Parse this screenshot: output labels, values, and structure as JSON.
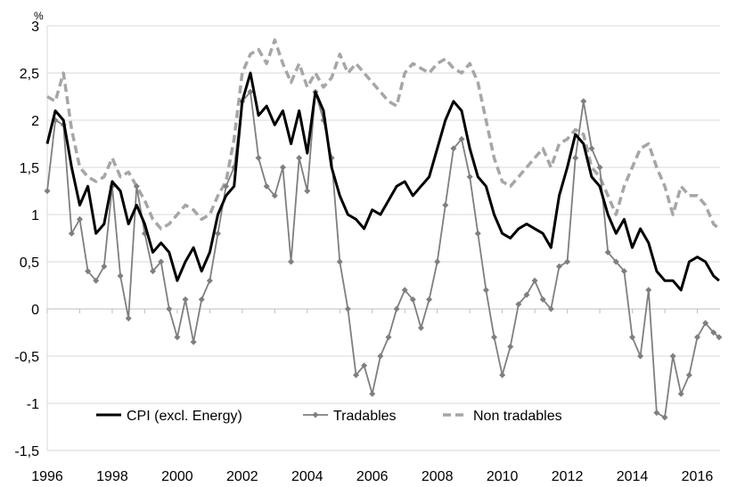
{
  "chart_data": {
    "type": "line",
    "title": "",
    "xlabel": "",
    "ylabel": "%",
    "xlim": [
      1996,
      2016.7
    ],
    "ylim": [
      -1.5,
      3
    ],
    "grid": "horizontal",
    "legend_position": "bottom-left inside plot",
    "x_ticks": [
      1996,
      1998,
      2000,
      2002,
      2004,
      2006,
      2008,
      2010,
      2012,
      2014,
      2016
    ],
    "x_tick_labels": [
      "1996",
      "1998",
      "2000",
      "2002",
      "2004",
      "2006",
      "2008",
      "2010",
      "2012",
      "2014",
      "2016"
    ],
    "y_ticks": [
      -1.5,
      -1,
      -0.5,
      0,
      0.5,
      1,
      1.5,
      2,
      2.5,
      3
    ],
    "y_tick_labels": [
      "-1,5",
      "-1",
      "-0,5",
      "0",
      "0,5",
      "1",
      "1,5",
      "2",
      "2,5",
      "3"
    ],
    "series": [
      {
        "name": "CPI (excl. Energy)",
        "color": "#000000",
        "style": "solid",
        "points": [
          [
            1996.0,
            1.75
          ],
          [
            1996.25,
            2.1
          ],
          [
            1996.5,
            2.0
          ],
          [
            1996.75,
            1.5
          ],
          [
            1997.0,
            1.1
          ],
          [
            1997.25,
            1.3
          ],
          [
            1997.5,
            0.8
          ],
          [
            1997.75,
            0.9
          ],
          [
            1998.0,
            1.35
          ],
          [
            1998.25,
            1.25
          ],
          [
            1998.5,
            0.9
          ],
          [
            1998.75,
            1.1
          ],
          [
            1999.0,
            0.9
          ],
          [
            1999.25,
            0.6
          ],
          [
            1999.5,
            0.7
          ],
          [
            1999.75,
            0.6
          ],
          [
            2000.0,
            0.3
          ],
          [
            2000.25,
            0.5
          ],
          [
            2000.5,
            0.65
          ],
          [
            2000.75,
            0.4
          ],
          [
            2001.0,
            0.6
          ],
          [
            2001.25,
            1.0
          ],
          [
            2001.5,
            1.2
          ],
          [
            2001.75,
            1.3
          ],
          [
            2002.0,
            2.2
          ],
          [
            2002.25,
            2.5
          ],
          [
            2002.5,
            2.05
          ],
          [
            2002.75,
            2.15
          ],
          [
            2003.0,
            1.95
          ],
          [
            2003.25,
            2.1
          ],
          [
            2003.5,
            1.75
          ],
          [
            2003.75,
            2.1
          ],
          [
            2004.0,
            1.65
          ],
          [
            2004.25,
            2.3
          ],
          [
            2004.5,
            2.1
          ],
          [
            2004.75,
            1.5
          ],
          [
            2005.0,
            1.2
          ],
          [
            2005.25,
            1.0
          ],
          [
            2005.5,
            0.95
          ],
          [
            2005.75,
            0.85
          ],
          [
            2006.0,
            1.05
          ],
          [
            2006.25,
            1.0
          ],
          [
            2006.5,
            1.15
          ],
          [
            2006.75,
            1.3
          ],
          [
            2007.0,
            1.35
          ],
          [
            2007.25,
            1.2
          ],
          [
            2007.5,
            1.3
          ],
          [
            2007.75,
            1.4
          ],
          [
            2008.0,
            1.7
          ],
          [
            2008.25,
            2.0
          ],
          [
            2008.5,
            2.2
          ],
          [
            2008.75,
            2.1
          ],
          [
            2009.0,
            1.7
          ],
          [
            2009.25,
            1.4
          ],
          [
            2009.5,
            1.3
          ],
          [
            2009.75,
            1.0
          ],
          [
            2010.0,
            0.8
          ],
          [
            2010.25,
            0.75
          ],
          [
            2010.5,
            0.85
          ],
          [
            2010.75,
            0.9
          ],
          [
            2011.0,
            0.85
          ],
          [
            2011.25,
            0.8
          ],
          [
            2011.5,
            0.65
          ],
          [
            2011.75,
            1.2
          ],
          [
            2012.0,
            1.5
          ],
          [
            2012.25,
            1.85
          ],
          [
            2012.5,
            1.75
          ],
          [
            2012.75,
            1.4
          ],
          [
            2013.0,
            1.3
          ],
          [
            2013.25,
            1.0
          ],
          [
            2013.5,
            0.8
          ],
          [
            2013.75,
            0.95
          ],
          [
            2014.0,
            0.65
          ],
          [
            2014.25,
            0.85
          ],
          [
            2014.5,
            0.7
          ],
          [
            2014.75,
            0.4
          ],
          [
            2015.0,
            0.3
          ],
          [
            2015.25,
            0.3
          ],
          [
            2015.5,
            0.2
          ],
          [
            2015.75,
            0.5
          ],
          [
            2016.0,
            0.55
          ],
          [
            2016.25,
            0.5
          ],
          [
            2016.5,
            0.35
          ],
          [
            2016.67,
            0.3
          ]
        ]
      },
      {
        "name": "Tradables",
        "color": "#7f7f7f",
        "style": "solid-with-diamond-markers",
        "points": [
          [
            1996.0,
            1.25
          ],
          [
            1996.25,
            2.0
          ],
          [
            1996.5,
            1.95
          ],
          [
            1996.75,
            0.8
          ],
          [
            1997.0,
            0.95
          ],
          [
            1997.25,
            0.4
          ],
          [
            1997.5,
            0.3
          ],
          [
            1997.75,
            0.45
          ],
          [
            1998.0,
            1.3
          ],
          [
            1998.25,
            0.35
          ],
          [
            1998.5,
            -0.1
          ],
          [
            1998.75,
            1.3
          ],
          [
            1999.0,
            0.8
          ],
          [
            1999.25,
            0.4
          ],
          [
            1999.5,
            0.5
          ],
          [
            1999.75,
            0.0
          ],
          [
            2000.0,
            -0.3
          ],
          [
            2000.25,
            0.1
          ],
          [
            2000.5,
            -0.35
          ],
          [
            2000.75,
            0.1
          ],
          [
            2001.0,
            0.3
          ],
          [
            2001.25,
            0.8
          ],
          [
            2001.5,
            1.3
          ],
          [
            2001.75,
            1.5
          ],
          [
            2002.0,
            2.2
          ],
          [
            2002.25,
            2.3
          ],
          [
            2002.5,
            1.6
          ],
          [
            2002.75,
            1.3
          ],
          [
            2003.0,
            1.2
          ],
          [
            2003.25,
            1.5
          ],
          [
            2003.5,
            0.5
          ],
          [
            2003.75,
            1.6
          ],
          [
            2004.0,
            1.25
          ],
          [
            2004.25,
            2.3
          ],
          [
            2004.5,
            2.0
          ],
          [
            2004.75,
            1.6
          ],
          [
            2005.0,
            0.5
          ],
          [
            2005.25,
            0.0
          ],
          [
            2005.5,
            -0.7
          ],
          [
            2005.75,
            -0.6
          ],
          [
            2006.0,
            -0.9
          ],
          [
            2006.25,
            -0.5
          ],
          [
            2006.5,
            -0.3
          ],
          [
            2006.75,
            0.0
          ],
          [
            2007.0,
            0.2
          ],
          [
            2007.25,
            0.1
          ],
          [
            2007.5,
            -0.2
          ],
          [
            2007.75,
            0.1
          ],
          [
            2008.0,
            0.5
          ],
          [
            2008.25,
            1.1
          ],
          [
            2008.5,
            1.7
          ],
          [
            2008.75,
            1.8
          ],
          [
            2009.0,
            1.4
          ],
          [
            2009.25,
            0.8
          ],
          [
            2009.5,
            0.2
          ],
          [
            2009.75,
            -0.3
          ],
          [
            2010.0,
            -0.7
          ],
          [
            2010.25,
            -0.4
          ],
          [
            2010.5,
            0.05
          ],
          [
            2010.75,
            0.15
          ],
          [
            2011.0,
            0.3
          ],
          [
            2011.25,
            0.1
          ],
          [
            2011.5,
            0.0
          ],
          [
            2011.75,
            0.45
          ],
          [
            2012.0,
            0.5
          ],
          [
            2012.25,
            1.6
          ],
          [
            2012.5,
            2.2
          ],
          [
            2012.75,
            1.7
          ],
          [
            2013.0,
            1.5
          ],
          [
            2013.25,
            0.6
          ],
          [
            2013.5,
            0.5
          ],
          [
            2013.75,
            0.4
          ],
          [
            2014.0,
            -0.3
          ],
          [
            2014.25,
            -0.5
          ],
          [
            2014.5,
            0.2
          ],
          [
            2014.75,
            -1.1
          ],
          [
            2015.0,
            -1.15
          ],
          [
            2015.25,
            -0.5
          ],
          [
            2015.5,
            -0.9
          ],
          [
            2015.75,
            -0.7
          ],
          [
            2016.0,
            -0.3
          ],
          [
            2016.25,
            -0.15
          ],
          [
            2016.5,
            -0.25
          ],
          [
            2016.67,
            -0.3
          ]
        ]
      },
      {
        "name": "Non tradables",
        "color": "#a6a6a6",
        "style": "dashed",
        "points": [
          [
            1996.0,
            2.25
          ],
          [
            1996.25,
            2.2
          ],
          [
            1996.5,
            2.5
          ],
          [
            1996.75,
            1.9
          ],
          [
            1997.0,
            1.5
          ],
          [
            1997.25,
            1.4
          ],
          [
            1997.5,
            1.35
          ],
          [
            1997.75,
            1.4
          ],
          [
            1998.0,
            1.6
          ],
          [
            1998.25,
            1.4
          ],
          [
            1998.5,
            1.45
          ],
          [
            1998.75,
            1.3
          ],
          [
            1999.0,
            1.15
          ],
          [
            1999.25,
            0.95
          ],
          [
            1999.5,
            0.85
          ],
          [
            1999.75,
            0.9
          ],
          [
            2000.0,
            1.0
          ],
          [
            2000.25,
            1.1
          ],
          [
            2000.5,
            1.05
          ],
          [
            2000.75,
            0.95
          ],
          [
            2001.0,
            1.0
          ],
          [
            2001.25,
            1.2
          ],
          [
            2001.5,
            1.35
          ],
          [
            2001.75,
            1.8
          ],
          [
            2002.0,
            2.5
          ],
          [
            2002.25,
            2.7
          ],
          [
            2002.5,
            2.75
          ],
          [
            2002.75,
            2.6
          ],
          [
            2003.0,
            2.85
          ],
          [
            2003.25,
            2.6
          ],
          [
            2003.5,
            2.4
          ],
          [
            2003.75,
            2.6
          ],
          [
            2004.0,
            2.35
          ],
          [
            2004.25,
            2.5
          ],
          [
            2004.5,
            2.35
          ],
          [
            2004.75,
            2.45
          ],
          [
            2005.0,
            2.7
          ],
          [
            2005.25,
            2.5
          ],
          [
            2005.5,
            2.6
          ],
          [
            2005.75,
            2.5
          ],
          [
            2006.0,
            2.4
          ],
          [
            2006.25,
            2.3
          ],
          [
            2006.5,
            2.2
          ],
          [
            2006.75,
            2.15
          ],
          [
            2007.0,
            2.5
          ],
          [
            2007.25,
            2.6
          ],
          [
            2007.5,
            2.55
          ],
          [
            2007.75,
            2.5
          ],
          [
            2008.0,
            2.6
          ],
          [
            2008.25,
            2.65
          ],
          [
            2008.5,
            2.55
          ],
          [
            2008.75,
            2.5
          ],
          [
            2009.0,
            2.6
          ],
          [
            2009.25,
            2.4
          ],
          [
            2009.5,
            2.0
          ],
          [
            2009.75,
            1.6
          ],
          [
            2010.0,
            1.35
          ],
          [
            2010.25,
            1.3
          ],
          [
            2010.5,
            1.4
          ],
          [
            2010.75,
            1.5
          ],
          [
            2011.0,
            1.6
          ],
          [
            2011.25,
            1.7
          ],
          [
            2011.5,
            1.5
          ],
          [
            2011.75,
            1.75
          ],
          [
            2012.0,
            1.8
          ],
          [
            2012.25,
            1.9
          ],
          [
            2012.5,
            1.85
          ],
          [
            2012.75,
            1.5
          ],
          [
            2013.0,
            1.4
          ],
          [
            2013.25,
            1.2
          ],
          [
            2013.5,
            1.0
          ],
          [
            2013.75,
            1.3
          ],
          [
            2014.0,
            1.5
          ],
          [
            2014.25,
            1.7
          ],
          [
            2014.5,
            1.75
          ],
          [
            2014.75,
            1.5
          ],
          [
            2015.0,
            1.3
          ],
          [
            2015.25,
            1.0
          ],
          [
            2015.5,
            1.3
          ],
          [
            2015.75,
            1.2
          ],
          [
            2016.0,
            1.2
          ],
          [
            2016.25,
            1.1
          ],
          [
            2016.5,
            0.9
          ],
          [
            2016.67,
            0.85
          ]
        ]
      }
    ]
  }
}
